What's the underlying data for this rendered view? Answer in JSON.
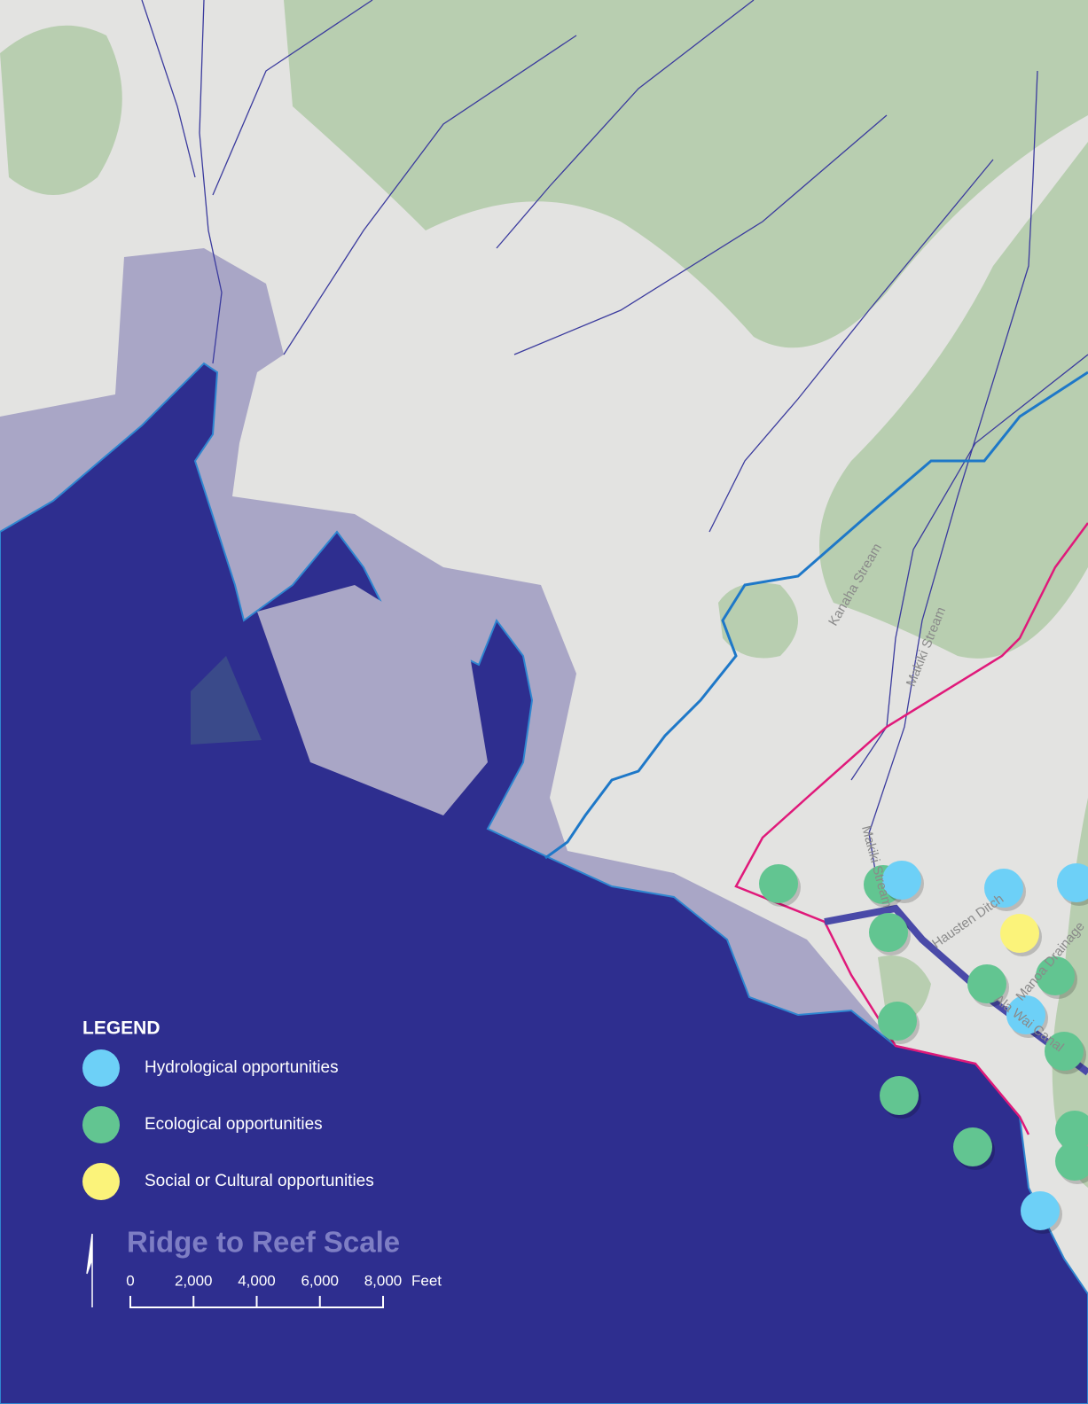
{
  "legend": {
    "title": "LEGEND",
    "items": [
      {
        "label": "Hydrological opportunities",
        "color": "#6dd0f7"
      },
      {
        "label": "Ecological opportunities",
        "color": "#62c591"
      },
      {
        "label": "Social or Cultural opportunities",
        "color": "#fbf37a"
      }
    ]
  },
  "scale": {
    "title": "Ridge to Reef Scale",
    "unit": "Feet",
    "ticks": [
      0,
      {
        "value": 2000,
        "label": "2,000"
      },
      {
        "value": 4000,
        "label": "4,000"
      },
      {
        "value": 6000,
        "label": "6,000"
      },
      {
        "value": 8000,
        "label": "8,000"
      }
    ]
  },
  "map_labels": [
    "Kanaha Stream",
    "Makiki Stream",
    "Makiki Stream",
    "Hausten Ditch",
    "Manoa Drainage",
    "Ala Wai Canal"
  ]
}
